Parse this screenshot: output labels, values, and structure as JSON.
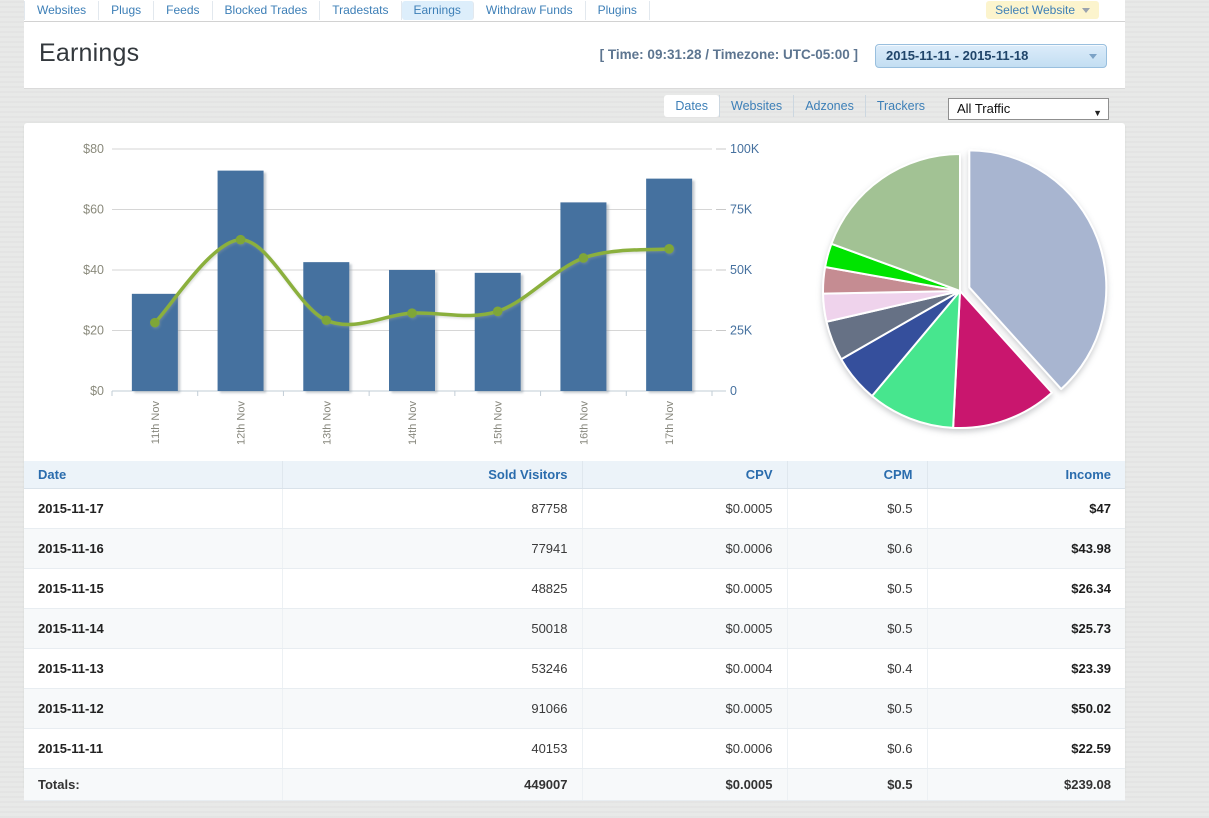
{
  "nav": {
    "items": [
      "Websites",
      "Plugs",
      "Feeds",
      "Blocked Trades",
      "Tradestats",
      "Earnings",
      "Withdraw Funds",
      "Plugins"
    ],
    "active_index": 5,
    "select_website_label": "Select Website"
  },
  "header": {
    "title": "Earnings",
    "time_text": "[ Time: 09:31:28 / Timezone: UTC-05:00 ]",
    "date_range": "2015-11-11 - 2015-11-18"
  },
  "tabs": {
    "items": [
      "Dates",
      "Websites",
      "Adzones",
      "Trackers"
    ],
    "active_index": 0,
    "traffic_filter": "All Traffic"
  },
  "chart_data": [
    {
      "type": "bar",
      "title": "",
      "categories": [
        "11th Nov",
        "12th Nov",
        "13th Nov",
        "14th Nov",
        "15th Nov",
        "16th Nov",
        "17th Nov"
      ],
      "series": [
        {
          "name": "Sold Visitors",
          "type": "bar",
          "axis": "right",
          "values": [
            40153,
            91066,
            53246,
            50018,
            48825,
            77941,
            87758
          ],
          "color": "#44719f"
        },
        {
          "name": "Income",
          "type": "line",
          "axis": "left",
          "values": [
            22.59,
            50.02,
            23.39,
            25.73,
            26.34,
            43.98,
            47
          ],
          "color": "#8bb03c",
          "marker_color": "#7fa637"
        }
      ],
      "left_axis": {
        "ticks": [
          "$0",
          "$20",
          "$40",
          "$60",
          "$80"
        ],
        "min": 0,
        "max": 80
      },
      "right_axis": {
        "ticks": [
          "0",
          "25K",
          "50K",
          "75K",
          "100K"
        ],
        "min": 0,
        "max": 100000
      },
      "grid": true,
      "legend": "none"
    },
    {
      "type": "pie",
      "title": "",
      "legend": "none",
      "slices": [
        {
          "percent": 38.3,
          "color": "#a8b5d0",
          "exploded": true
        },
        {
          "percent": 12.5,
          "color": "#c9146e"
        },
        {
          "percent": 10.3,
          "color": "#46e68e"
        },
        {
          "percent": 5.6,
          "color": "#35509c"
        },
        {
          "percent": 4.7,
          "color": "#667185"
        },
        {
          "percent": 3.3,
          "color": "#efd3ec"
        },
        {
          "percent": 3.1,
          "color": "#c58c92"
        },
        {
          "percent": 2.8,
          "color": "#00e400"
        },
        {
          "percent": 19.4,
          "color": "#a2c294"
        }
      ]
    }
  ],
  "table": {
    "columns": [
      "Date",
      "Sold Visitors",
      "CPV",
      "CPM",
      "Income"
    ],
    "rows": [
      [
        "2015-11-17",
        "87758",
        "$0.0005",
        "$0.5",
        "$47"
      ],
      [
        "2015-11-16",
        "77941",
        "$0.0006",
        "$0.6",
        "$43.98"
      ],
      [
        "2015-11-15",
        "48825",
        "$0.0005",
        "$0.5",
        "$26.34"
      ],
      [
        "2015-11-14",
        "50018",
        "$0.0005",
        "$0.5",
        "$25.73"
      ],
      [
        "2015-11-13",
        "53246",
        "$0.0004",
        "$0.4",
        "$23.39"
      ],
      [
        "2015-11-12",
        "91066",
        "$0.0005",
        "$0.5",
        "$50.02"
      ],
      [
        "2015-11-11",
        "40153",
        "$0.0006",
        "$0.6",
        "$22.59"
      ]
    ],
    "totals": [
      "Totals:",
      "449007",
      "$0.0005",
      "$0.5",
      "$239.08"
    ]
  },
  "colors": {
    "accent_link": "#3d7fb7",
    "nav_active_bg": "#ddeefb",
    "select_website_bg": "#fcf4cd",
    "table_header_text": "#2a6cad",
    "bar": "#44719f",
    "line": "#8bb03c"
  }
}
